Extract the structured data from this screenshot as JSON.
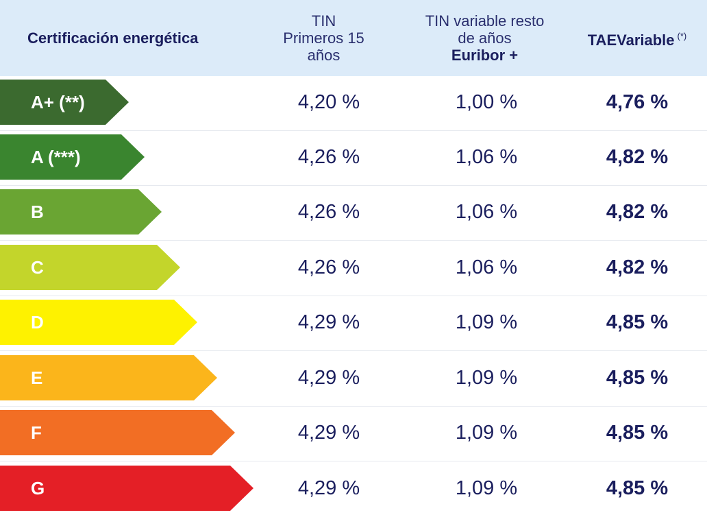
{
  "header": {
    "certification": "Certificación energética",
    "tin_line1": "TIN",
    "tin_line2": "Primeros 15",
    "tin_line3": "años",
    "variable_line1": "TIN variable resto",
    "variable_line2": "de años",
    "variable_line3": "Euribor +",
    "tae": "TAEVariable",
    "tae_note": "(*)"
  },
  "rows": [
    {
      "label": "A+ (**)",
      "tin": "4,20 %",
      "variable": "1,00 %",
      "tae": "4,76 %",
      "color": "#3b6a2f"
    },
    {
      "label": "A (***)",
      "tin": "4,26 %",
      "variable": "1,06 %",
      "tae": "4,82 %",
      "color": "#3a852f"
    },
    {
      "label": "B",
      "tin": "4,26 %",
      "variable": "1,06 %",
      "tae": "4,82 %",
      "color": "#6aa533"
    },
    {
      "label": "C",
      "tin": "4,26 %",
      "variable": "1,06 %",
      "tae": "4,82 %",
      "color": "#c3d52b"
    },
    {
      "label": "D",
      "tin": "4,29 %",
      "variable": "1,09 %",
      "tae": "4,85 %",
      "color": "#fef200"
    },
    {
      "label": "E",
      "tin": "4,29 %",
      "variable": "1,09 %",
      "tae": "4,85 %",
      "color": "#fbb51b"
    },
    {
      "label": "F",
      "tin": "4,29 %",
      "variable": "1,09 %",
      "tae": "4,85 %",
      "color": "#f26e24"
    },
    {
      "label": "G",
      "tin": "4,29 %",
      "variable": "1,09 %",
      "tae": "4,85 %",
      "color": "#e41f26"
    }
  ]
}
